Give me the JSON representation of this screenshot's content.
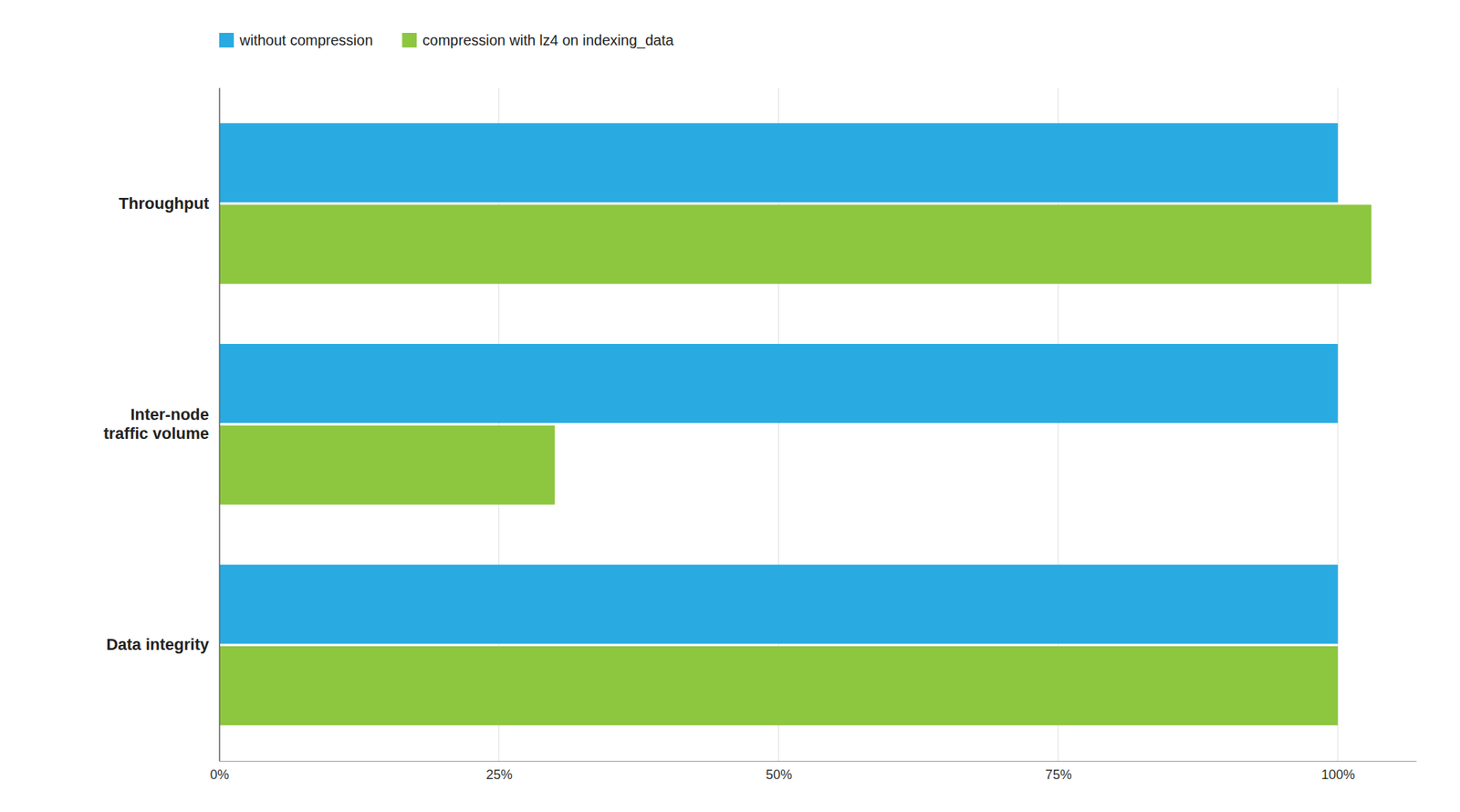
{
  "chart_data": {
    "type": "bar",
    "orientation": "horizontal",
    "categories": [
      "Data integrity",
      "Inter-node\ntraffic volume",
      "Throughput"
    ],
    "series": [
      {
        "name": "without compression",
        "color": "#29ABE2",
        "values": [
          100,
          100,
          100
        ]
      },
      {
        "name": "compression with lz4 on indexing_data",
        "color": "#8DC63F",
        "values": [
          100,
          30,
          103
        ]
      }
    ],
    "xlim": [
      0,
      107
    ],
    "xticks": [
      {
        "value": 0,
        "label": "0%"
      },
      {
        "value": 25,
        "label": "25%"
      },
      {
        "value": 50,
        "label": "50%"
      },
      {
        "value": 75,
        "label": "75%"
      },
      {
        "value": 100,
        "label": "100%"
      }
    ],
    "grid": true,
    "legend": "top-left"
  }
}
